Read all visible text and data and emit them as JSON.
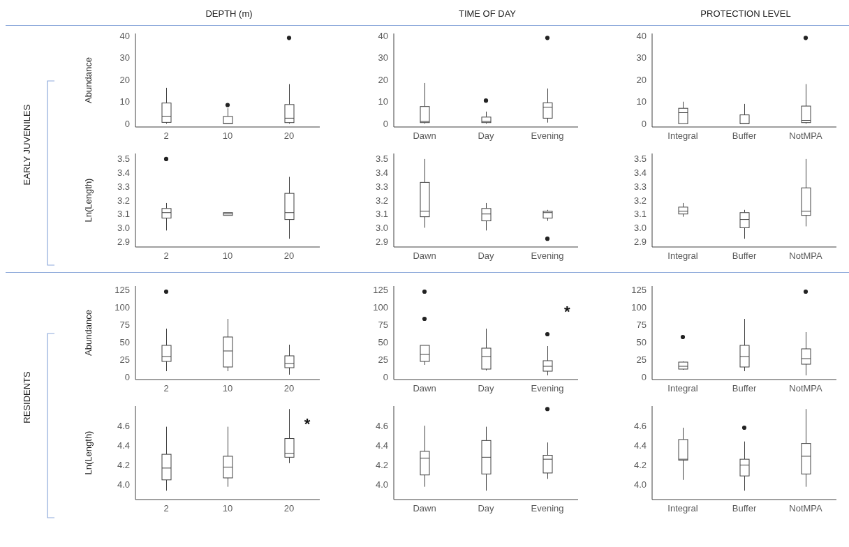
{
  "chart_data": [
    {
      "type": "box",
      "title": "DEPTH (m)",
      "ylabel": "Abundance",
      "annotations": [
        "EARLY JUVENILES"
      ],
      "categories": [
        "2",
        "10",
        "20"
      ],
      "ylim": [
        -1.5,
        41
      ],
      "yticks": [
        0,
        10,
        20,
        30,
        40
      ],
      "boxes": [
        {
          "low": 0,
          "q1": 0.6,
          "median": 3.4,
          "q3": 9.4,
          "high": 16.3
        },
        {
          "low": 0,
          "q1": 0,
          "median": 0,
          "q3": 3.3,
          "high": 7,
          "outliers": [
            8.5
          ]
        },
        {
          "low": 0,
          "q1": 0.5,
          "median": 2.5,
          "q3": 8.7,
          "high": 18,
          "outliers": [
            39
          ]
        }
      ]
    },
    {
      "type": "box",
      "title": "TIME OF DAY",
      "ylabel": null,
      "categories": [
        "Dawn",
        "Day",
        "Evening"
      ],
      "ylim": [
        -1.5,
        41
      ],
      "yticks": [
        0,
        10,
        20,
        30,
        40
      ],
      "boxes": [
        {
          "low": 0,
          "q1": 0.5,
          "median": 1,
          "q3": 7.8,
          "high": 18.5
        },
        {
          "low": 0,
          "q1": 0.5,
          "median": 1,
          "q3": 3,
          "high": 5.5,
          "outliers": [
            10.5
          ]
        },
        {
          "low": 0.5,
          "q1": 2.5,
          "median": 7.5,
          "q3": 9.5,
          "high": 16,
          "outliers": [
            39
          ]
        }
      ]
    },
    {
      "type": "box",
      "title": "PROTECTION LEVEL",
      "ylabel": null,
      "categories": [
        "Integral",
        "Buffer",
        "NotMPA"
      ],
      "ylim": [
        -1.5,
        41
      ],
      "yticks": [
        0,
        10,
        20,
        30,
        40
      ],
      "boxes": [
        {
          "low": 0,
          "q1": 0,
          "median": 5,
          "q3": 7,
          "high": 10
        },
        {
          "low": 0,
          "q1": 0,
          "median": 0,
          "q3": 4,
          "high": 9
        },
        {
          "low": 0,
          "q1": 0.5,
          "median": 1.5,
          "q3": 8,
          "high": 18,
          "outliers": [
            39
          ]
        }
      ]
    },
    {
      "type": "box",
      "ylabel": "Ln(Length)",
      "categories": [
        "2",
        "10",
        "20"
      ],
      "ylim": [
        2.86,
        3.54
      ],
      "yticks": [
        {
          "value": 2.9,
          "label": "2.9"
        },
        {
          "value": 3,
          "label": "3.0"
        },
        3.1,
        3.2,
        3.3,
        3.4,
        3.5
      ],
      "boxes": [
        {
          "low": 2.98,
          "q1": 3.07,
          "median": 3.11,
          "q3": 3.14,
          "high": 3.18,
          "outliers": [
            3.5
          ]
        },
        {
          "low": 3.09,
          "q1": 3.09,
          "median": 3.1,
          "q3": 3.11,
          "high": 3.11
        },
        {
          "low": 2.92,
          "q1": 3.06,
          "median": 3.11,
          "q3": 3.25,
          "high": 3.37
        }
      ]
    },
    {
      "type": "box",
      "categories": [
        "Dawn",
        "Day",
        "Evening"
      ],
      "ylim": [
        2.86,
        3.54
      ],
      "yticks": [
        {
          "value": 2.9,
          "label": "2.9"
        },
        {
          "value": 3,
          "label": "3.0"
        },
        3.1,
        3.2,
        3.3,
        3.4,
        3.5
      ],
      "boxes": [
        {
          "low": 3.0,
          "q1": 3.08,
          "median": 3.12,
          "q3": 3.33,
          "high": 3.5
        },
        {
          "low": 2.98,
          "q1": 3.05,
          "median": 3.1,
          "q3": 3.14,
          "high": 3.18
        },
        {
          "low": 3.05,
          "q1": 3.07,
          "median": 3.11,
          "q3": 3.12,
          "high": 3.13,
          "outliers": [
            2.92
          ]
        }
      ]
    },
    {
      "type": "box",
      "categories": [
        "Integral",
        "Buffer",
        "NotMPA"
      ],
      "ylim": [
        2.86,
        3.54
      ],
      "yticks": [
        {
          "value": 2.9,
          "label": "2.9"
        },
        {
          "value": 3,
          "label": "3.0"
        },
        3.1,
        3.2,
        3.3,
        3.4,
        3.5
      ],
      "boxes": [
        {
          "low": 3.08,
          "q1": 3.1,
          "median": 3.12,
          "q3": 3.15,
          "high": 3.18
        },
        {
          "low": 2.92,
          "q1": 3.0,
          "median": 3.06,
          "q3": 3.11,
          "high": 3.13
        },
        {
          "low": 3.01,
          "q1": 3.09,
          "median": 3.12,
          "q3": 3.29,
          "high": 3.5
        }
      ]
    },
    {
      "type": "box",
      "ylabel": "Abundance",
      "annotations": [
        "RESIDENTS"
      ],
      "categories": [
        "2",
        "10",
        "20"
      ],
      "ylim": [
        -4,
        130
      ],
      "yticks": [
        0,
        25,
        50,
        75,
        100,
        125
      ],
      "boxes": [
        {
          "low": 8,
          "q1": 22,
          "median": 29,
          "q3": 45,
          "high": 69,
          "outliers": [
            122
          ]
        },
        {
          "low": 8,
          "q1": 14,
          "median": 37,
          "q3": 57,
          "high": 83
        },
        {
          "low": 3,
          "q1": 13,
          "median": 19,
          "q3": 30,
          "high": 46
        }
      ]
    },
    {
      "type": "box",
      "annotations": [
        "*"
      ],
      "categories": [
        "Dawn",
        "Day",
        "Evening"
      ],
      "ylim": [
        -4,
        130
      ],
      "yticks": [
        0,
        25,
        50,
        75,
        100,
        125
      ],
      "boxes": [
        {
          "low": 17,
          "q1": 22,
          "median": 32,
          "q3": 45,
          "high": 45,
          "outliers": [
            83,
            122
          ]
        },
        {
          "low": 9,
          "q1": 11,
          "median": 29,
          "q3": 41,
          "high": 69
        },
        {
          "low": 2,
          "q1": 8,
          "median": 15,
          "q3": 23,
          "high": 44,
          "outliers": [
            61
          ]
        }
      ]
    },
    {
      "type": "box",
      "categories": [
        "Integral",
        "Buffer",
        "NotMPA"
      ],
      "ylim": [
        -4,
        130
      ],
      "yticks": [
        0,
        25,
        50,
        75,
        100,
        125
      ],
      "boxes": [
        {
          "low": 10,
          "q1": 11,
          "median": 15,
          "q3": 21,
          "high": 22,
          "outliers": [
            57
          ]
        },
        {
          "low": 8,
          "q1": 14,
          "median": 29,
          "q3": 45,
          "high": 83
        },
        {
          "low": 2,
          "q1": 18,
          "median": 26,
          "q3": 40,
          "high": 64,
          "outliers": [
            122
          ]
        }
      ]
    },
    {
      "type": "box",
      "ylabel": "Ln(Length)",
      "annotations": [
        {
          "text": "*",
          "x": "20",
          "y": 4.62
        }
      ],
      "categories": [
        "2",
        "10",
        "20"
      ],
      "ylim": [
        3.85,
        4.8
      ],
      "yticks": [
        {
          "value": 4,
          "label": "4.0"
        },
        4.2,
        4.4,
        4.6
      ],
      "boxes": [
        {
          "low": 3.94,
          "q1": 4.05,
          "median": 4.17,
          "q3": 4.31,
          "high": 4.59
        },
        {
          "low": 3.98,
          "q1": 4.07,
          "median": 4.18,
          "q3": 4.29,
          "high": 4.59
        },
        {
          "low": 4.22,
          "q1": 4.28,
          "median": 4.32,
          "q3": 4.47,
          "high": 4.77
        }
      ]
    },
    {
      "type": "box",
      "categories": [
        "Dawn",
        "Day",
        "Evening"
      ],
      "ylim": [
        3.85,
        4.8
      ],
      "yticks": [
        {
          "value": 4,
          "label": "4.0"
        },
        4.2,
        4.4,
        4.6
      ],
      "boxes": [
        {
          "low": 3.98,
          "q1": 4.1,
          "median": 4.27,
          "q3": 4.34,
          "high": 4.6
        },
        {
          "low": 3.94,
          "q1": 4.11,
          "median": 4.28,
          "q3": 4.45,
          "high": 4.59
        },
        {
          "low": 4.06,
          "q1": 4.12,
          "median": 4.26,
          "q3": 4.3,
          "high": 4.43,
          "outliers": [
            4.77
          ]
        }
      ]
    },
    {
      "type": "box",
      "categories": [
        "Integral",
        "Buffer",
        "NotMPA"
      ],
      "ylim": [
        3.85,
        4.8
      ],
      "yticks": [
        {
          "value": 4,
          "label": "4.0"
        },
        4.2,
        4.4,
        4.6
      ],
      "boxes": [
        {
          "low": 4.05,
          "q1": 4.25,
          "median": 4.26,
          "q3": 4.46,
          "high": 4.58
        },
        {
          "low": 3.94,
          "q1": 4.09,
          "median": 4.2,
          "q3": 4.26,
          "high": 4.44,
          "outliers": [
            4.58
          ]
        },
        {
          "low": 3.98,
          "q1": 4.11,
          "median": 4.29,
          "q3": 4.42,
          "high": 4.77
        }
      ]
    }
  ]
}
